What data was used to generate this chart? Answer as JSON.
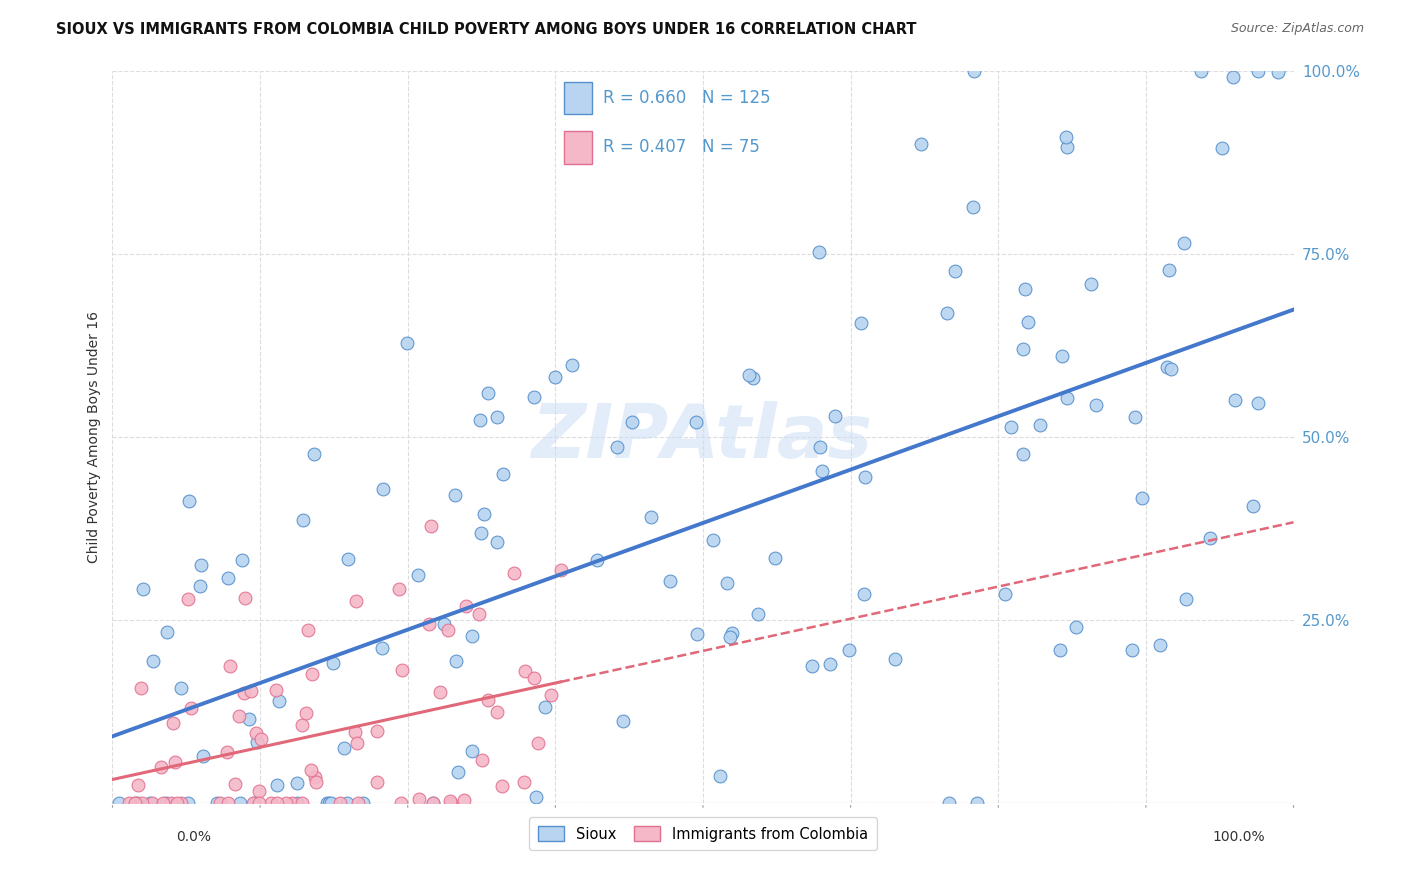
{
  "title": "SIOUX VS IMMIGRANTS FROM COLOMBIA CHILD POVERTY AMONG BOYS UNDER 16 CORRELATION CHART",
  "source": "Source: ZipAtlas.com",
  "ylabel": "Child Poverty Among Boys Under 16",
  "legend1_label": "Sioux",
  "legend2_label": "Immigrants from Colombia",
  "r1": 0.66,
  "n1": 125,
  "r2": 0.407,
  "n2": 75,
  "color_blue": "#b8d4f0",
  "color_pink": "#f5b8c8",
  "edge_blue": "#5590cc",
  "edge_pink": "#e07090",
  "line_blue": "#4478cc",
  "line_pink": "#e06878",
  "watermark_color": "#ccddf5",
  "background": "#ffffff",
  "grid_color": "#dddddd",
  "right_tick_color": "#5599cc",
  "title_color": "#111111",
  "source_color": "#666666"
}
